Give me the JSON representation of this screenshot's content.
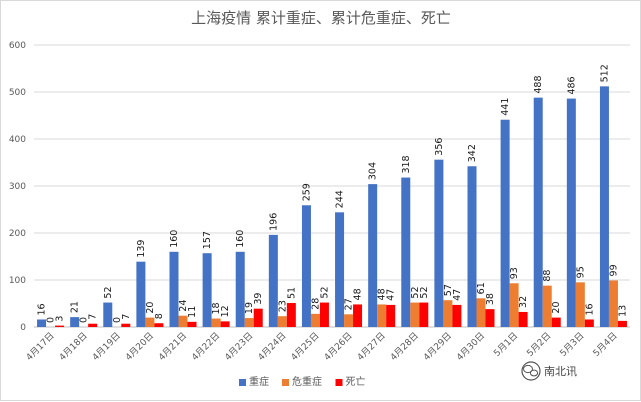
{
  "chart_data": {
    "type": "bar",
    "title": "上海疫情 累计重症、累计危重症、死亡",
    "categories": [
      "4月17日",
      "4月18日",
      "4月19日",
      "4月20日",
      "4月21日",
      "4月22日",
      "4月23日",
      "4月24日",
      "4月25日",
      "4月26日",
      "4月27日",
      "4月28日",
      "4月29日",
      "4月30日",
      "5月1日",
      "5月2日",
      "5月3日",
      "5月4日"
    ],
    "series": [
      {
        "name": "重症",
        "color": "#4472c4",
        "values": [
          16,
          21,
          52,
          139,
          160,
          157,
          160,
          196,
          259,
          244,
          304,
          318,
          356,
          342,
          441,
          488,
          486,
          512
        ]
      },
      {
        "name": "危重症",
        "color": "#ed7d31",
        "values": [
          0,
          0,
          0,
          20,
          24,
          18,
          19,
          23,
          28,
          27,
          48,
          52,
          57,
          61,
          93,
          88,
          95,
          99
        ]
      },
      {
        "name": "死亡",
        "color": "#ff0000",
        "values": [
          3,
          7,
          7,
          8,
          11,
          12,
          39,
          51,
          52,
          48,
          47,
          52,
          47,
          38,
          32,
          20,
          16,
          13
        ]
      }
    ],
    "ylim": [
      0,
      600
    ],
    "yticks": [
      0,
      100,
      200,
      300,
      400,
      500,
      600
    ],
    "grid": true,
    "legend": "bottom"
  },
  "watermark": {
    "text": "南北讯",
    "icon": "wechat-icon"
  }
}
